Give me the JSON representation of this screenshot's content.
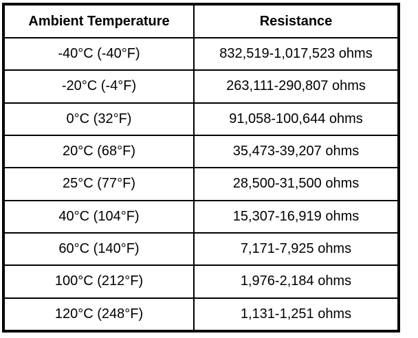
{
  "colors": {
    "border": "#000000",
    "text": "#000000",
    "background": "#ffffff"
  },
  "chart_data": {
    "type": "table",
    "columns": [
      "Ambient Temperature",
      "Resistance"
    ],
    "rows": [
      {
        "temperature": "-40°C (-40°F)",
        "resistance": "832,519-1,017,523 ohms"
      },
      {
        "temperature": "-20°C (-4°F)",
        "resistance": "263,111-290,807 ohms"
      },
      {
        "temperature": "0°C (32°F)",
        "resistance": "91,058-100,644 ohms"
      },
      {
        "temperature": "20°C (68°F)",
        "resistance": "35,473-39,207 ohms"
      },
      {
        "temperature": "25°C (77°F)",
        "resistance": "28,500-31,500 ohms"
      },
      {
        "temperature": "40°C (104°F)",
        "resistance": "15,307-16,919 ohms"
      },
      {
        "temperature": "60°C (140°F)",
        "resistance": "7,171-7,925 ohms"
      },
      {
        "temperature": "100°C (212°F)",
        "resistance": "1,976-2,184 ohms"
      },
      {
        "temperature": "120°C (248°F)",
        "resistance": "1,131-1,251 ohms"
      }
    ]
  }
}
